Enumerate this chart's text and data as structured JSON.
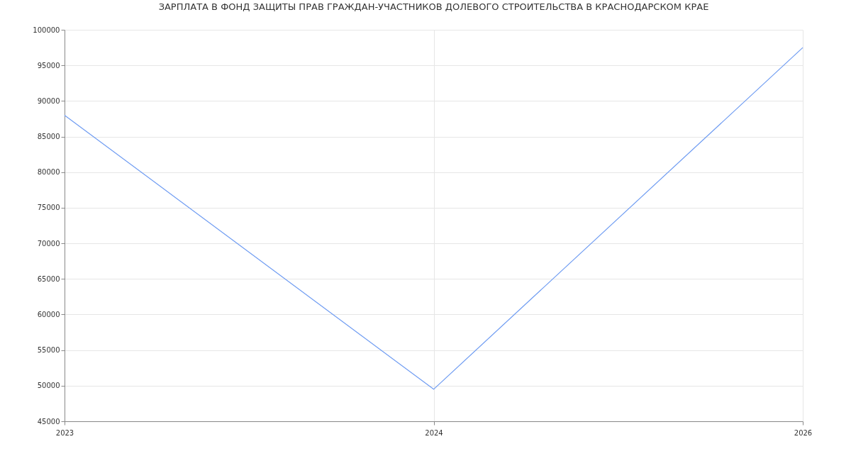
{
  "chart_data": {
    "type": "line",
    "title": "ЗАРПЛАТА В ФОНД ЗАЩИТЫ ПРАВ ГРАЖДАН-УЧАСТНИКОВ ДОЛЕВОГО СТРОИТЕЛЬСТВА В КРАСНОДАРСКОМ КРАЕ",
    "categories": [
      "2023",
      "2024",
      "2026"
    ],
    "series": [
      {
        "color": "#6f9cf2",
        "values": [
          88000,
          49500,
          97500
        ]
      }
    ],
    "ylim": [
      45000,
      100000
    ],
    "yticks": [
      45000,
      50000,
      55000,
      60000,
      65000,
      70000,
      75000,
      80000,
      85000,
      90000,
      95000,
      100000
    ],
    "grid": true,
    "legend": false,
    "marker": "none",
    "line_style": "solid"
  }
}
